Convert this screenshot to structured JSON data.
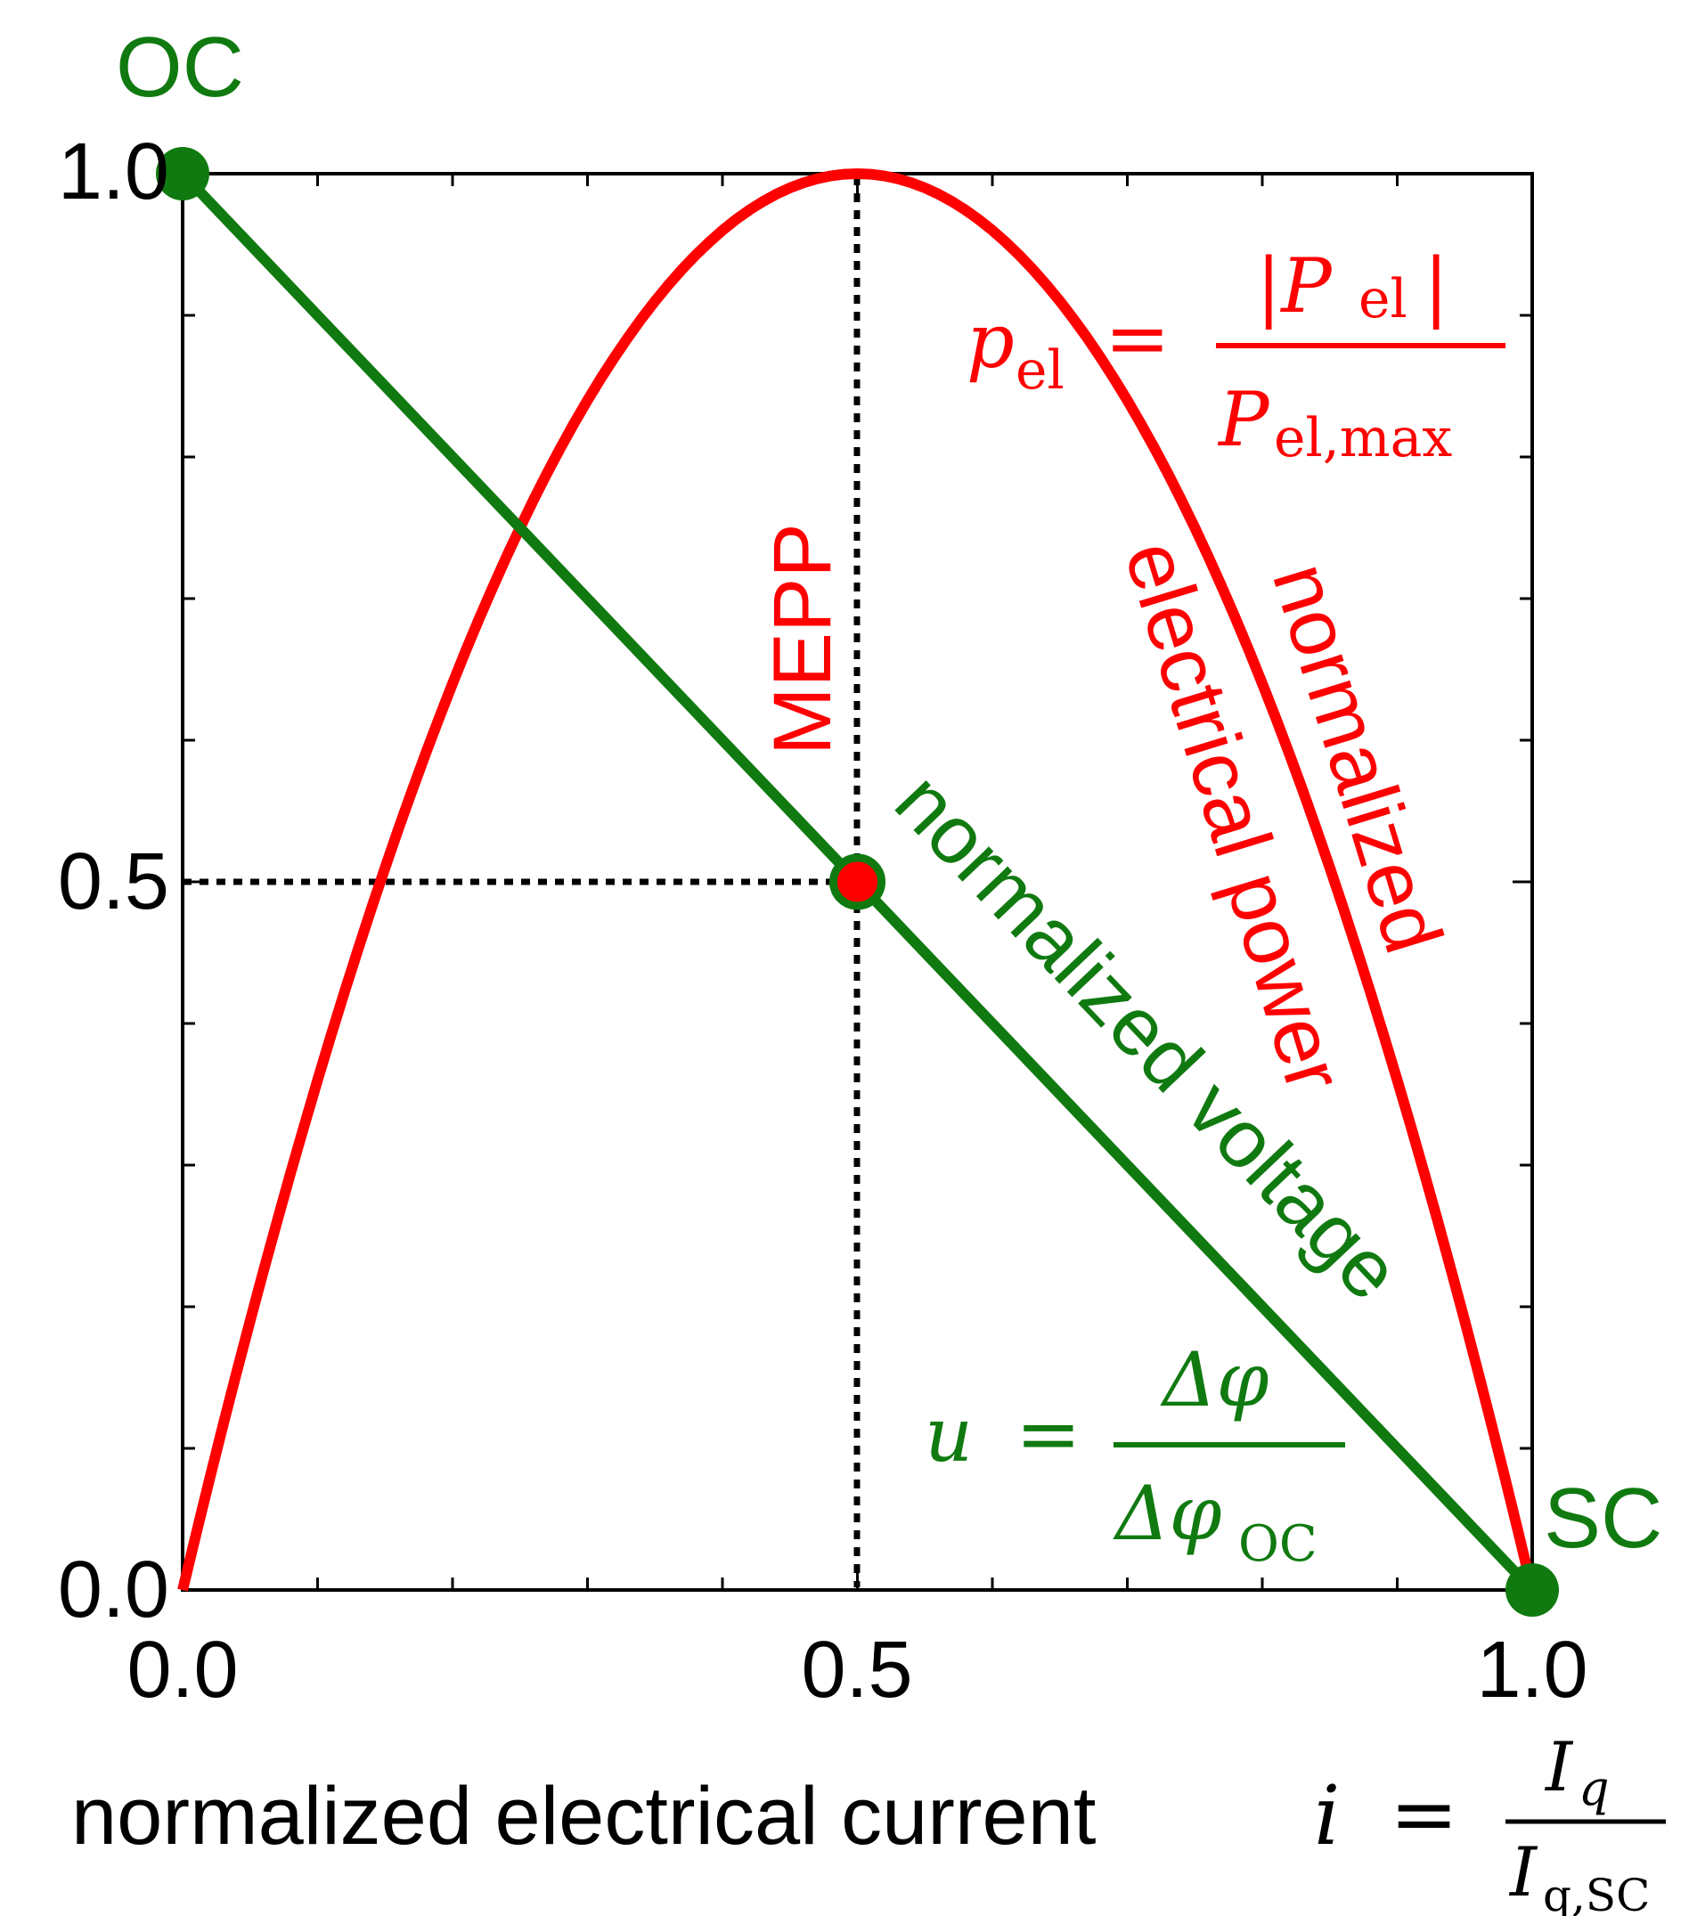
{
  "chart_data": {
    "type": "line",
    "title": "",
    "xlim": [
      0,
      1
    ],
    "ylim": [
      0,
      1
    ],
    "x_ticks": [
      "0.0",
      "0.5",
      "1.0"
    ],
    "y_ticks": [
      "1.0",
      "0.5",
      "0.0"
    ],
    "xlabel": {
      "text": "normalized electrical current",
      "symbol": "i",
      "equals": "=",
      "numerator": "I",
      "numerator_sub": "q",
      "denominator": "I",
      "denominator_sub": "q,SC"
    },
    "series": [
      {
        "name": "normalized voltage",
        "color": "#107a10",
        "formula": "u = 1 - i",
        "x": [
          0,
          1
        ],
        "y": [
          1,
          0
        ]
      },
      {
        "name": "normalized electrical power",
        "color": "#ff0000",
        "formula": "p = 4 i (1 - i)",
        "samples": 100
      }
    ],
    "power_label_line1": "normalized",
    "power_label_line2": "electrical power",
    "power_formula": {
      "lhs": "p",
      "lhs_sub": "el",
      "equals": "=",
      "numerator": "|P",
      "numerator_sub": "el",
      "numerator_end": "|",
      "denominator": "P",
      "denominator_sub": "el,max"
    },
    "voltage_formula": {
      "lhs": "u",
      "equals": "=",
      "numerator": "Δφ",
      "denominator": "Δφ",
      "denominator_sub": "OC"
    },
    "points": [
      {
        "label": "OC",
        "x": 0,
        "y": 1,
        "color": "#107a10"
      },
      {
        "label": "SC",
        "x": 1,
        "y": 0,
        "color": "#107a10"
      },
      {
        "label": "MEPP",
        "x": 0.5,
        "y": 0.5,
        "color": "#ff0000"
      }
    ],
    "grid": false
  }
}
